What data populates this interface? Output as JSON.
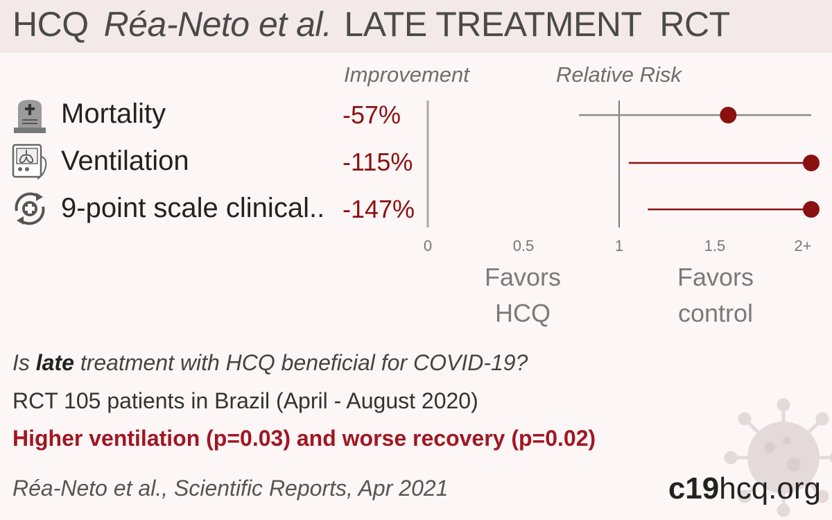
{
  "header": {
    "drug": "HCQ",
    "authors": "Réa-Neto et al.",
    "treatment": "LATE TREATMENT  RCT"
  },
  "columns": {
    "improvement": "Improvement",
    "relative_risk": "Relative Risk"
  },
  "outcomes": [
    {
      "icon": "tombstone-icon",
      "label": "Mortality",
      "improvement": "-57%"
    },
    {
      "icon": "ventilator-icon",
      "label": "Ventilation",
      "improvement": "-115%"
    },
    {
      "icon": "recovery-cycle-icon",
      "label": "9-point scale clinical..",
      "improvement": "-147%"
    }
  ],
  "favors": {
    "left": [
      "Favors",
      "HCQ"
    ],
    "right": [
      "Favors",
      "control"
    ]
  },
  "summary": {
    "question_pre": "Is ",
    "question_bold": "late",
    "question_post": " treatment with HCQ beneficial for COVID-19?",
    "design": "RCT 105 patients in Brazil (April - August 2020)",
    "conclusion": "Higher ventilation (p=0.03) and worse recovery (p=0.02)",
    "citation": "Réa-Neto et al., Scientific Reports, Apr 2021"
  },
  "site": {
    "bold": "c19",
    "rest": "hcq.org"
  },
  "colors": {
    "accent": "#8b1010",
    "conclusion": "#a01722",
    "ci_neutral": "#8a8a8a"
  },
  "chart_data": {
    "type": "forest",
    "xlabel": "",
    "ylabel": "",
    "xlim": [
      0,
      2
    ],
    "x_ticks": [
      "0",
      "0.5",
      "1",
      "1.5",
      "2+"
    ],
    "x_tick_values": [
      0,
      0.5,
      1,
      1.5,
      2
    ],
    "reference_line": 1,
    "series": [
      {
        "outcome": "Mortality",
        "rr": 1.57,
        "ci_low": 0.79,
        "ci_high": 3.0,
        "significant": false
      },
      {
        "outcome": "Ventilation",
        "rr": 2.15,
        "ci_low": 1.05,
        "ci_high": 4.4,
        "significant": true
      },
      {
        "outcome": "9-point scale clinical..",
        "rr": 2.47,
        "ci_low": 1.15,
        "ci_high": 5.3,
        "significant": true
      }
    ]
  }
}
